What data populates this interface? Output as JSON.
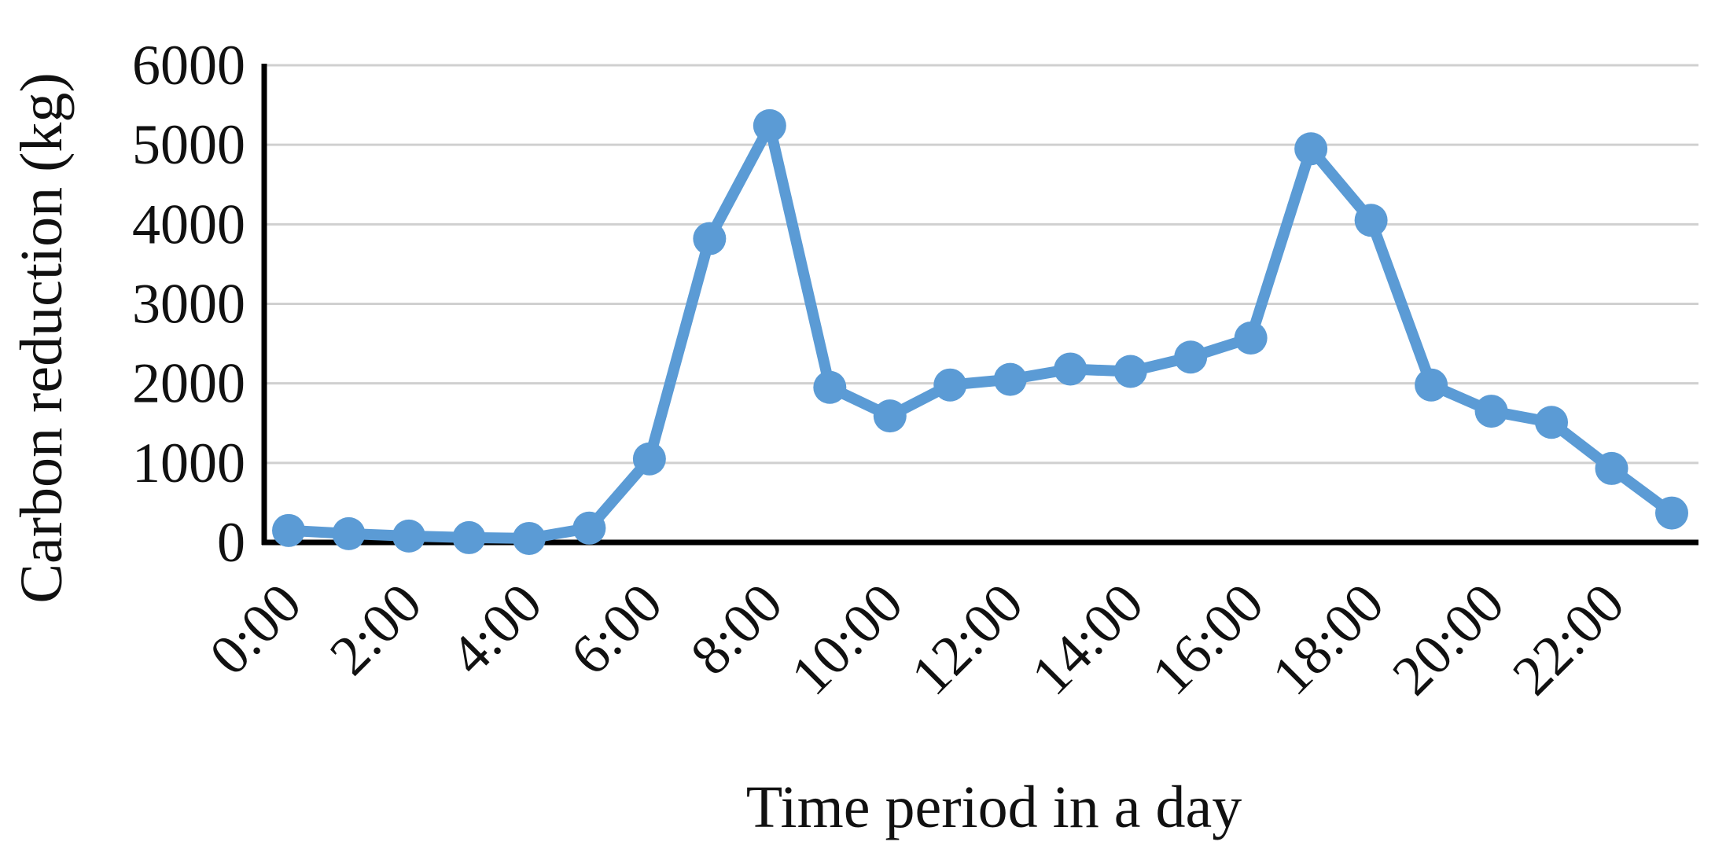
{
  "chart_data": {
    "type": "line",
    "xlabel": "Time period in a day",
    "ylabel": "Carbon reduction (kg)",
    "x": [
      "0:00",
      "1:00",
      "2:00",
      "3:00",
      "4:00",
      "5:00",
      "6:00",
      "7:00",
      "8:00",
      "9:00",
      "10:00",
      "11:00",
      "12:00",
      "13:00",
      "14:00",
      "15:00",
      "16:00",
      "17:00",
      "18:00",
      "19:00",
      "20:00",
      "21:00",
      "22:00",
      "23:00"
    ],
    "x_tick_labels": [
      "0:00",
      "2:00",
      "4:00",
      "6:00",
      "8:00",
      "10:00",
      "12:00",
      "14:00",
      "16:00",
      "18:00",
      "20:00",
      "22:00"
    ],
    "y_ticks": [
      "0",
      "1000",
      "2000",
      "3000",
      "4000",
      "5000",
      "6000"
    ],
    "ylim": [
      0,
      6000
    ],
    "grid": "horizontal",
    "series": [
      {
        "color": "#5b9bd5",
        "marker": "circle",
        "values": [
          150,
          110,
          80,
          60,
          50,
          180,
          1050,
          3820,
          5240,
          1950,
          1590,
          1980,
          2050,
          2180,
          2150,
          2330,
          2570,
          4950,
          4050,
          1980,
          1650,
          1510,
          930,
          370
        ]
      }
    ]
  }
}
